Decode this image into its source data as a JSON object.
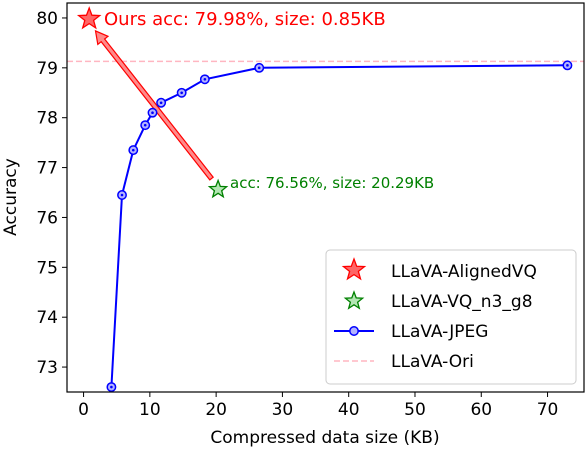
{
  "chart_data": {
    "type": "line",
    "xlabel": "Compressed data size (KB)",
    "ylabel": "Accuracy",
    "xlim": [
      -2.5,
      75.5
    ],
    "ylim": [
      72.5,
      80.3
    ],
    "xticks": [
      0,
      10,
      20,
      30,
      40,
      50,
      60,
      70
    ],
    "yticks": [
      73,
      74,
      75,
      76,
      77,
      78,
      79,
      80
    ],
    "grid": false,
    "legend_position": "lower-right",
    "series": [
      {
        "name": "LLaVA-AlignedVQ",
        "kind": "scatter",
        "marker": "star",
        "color": "#ff0000",
        "x": [
          0.85
        ],
        "y": [
          79.98
        ]
      },
      {
        "name": "LLaVA-VQ_n3_g8",
        "kind": "scatter",
        "marker": "star",
        "color": "#008000",
        "x": [
          20.29
        ],
        "y": [
          76.56
        ]
      },
      {
        "name": "LLaVA-JPEG",
        "kind": "line",
        "marker": "circle",
        "color": "#0000ff",
        "x": [
          4.2,
          5.8,
          7.5,
          9.3,
          10.4,
          11.7,
          14.8,
          18.3,
          26.5,
          73.0
        ],
        "y": [
          72.6,
          76.45,
          77.35,
          77.85,
          78.1,
          78.3,
          78.5,
          78.77,
          79.0,
          79.05
        ]
      },
      {
        "name": "LLaVA-Ori",
        "kind": "hline",
        "style": "dashed",
        "color": "#ffb6c1",
        "y": 79.13
      }
    ],
    "annotations": [
      {
        "text": "Ours acc: 79.98%, size: 0.85KB",
        "color": "#ff0000",
        "x": 0.85,
        "y": 79.98
      },
      {
        "text": "acc: 76.56%, size: 20.29KB",
        "color": "#008000",
        "x": 20.29,
        "y": 76.56
      }
    ],
    "arrow": {
      "from": [
        19.3,
        76.78
      ],
      "to": [
        1.8,
        79.74
      ],
      "color": "#ff0000"
    }
  }
}
